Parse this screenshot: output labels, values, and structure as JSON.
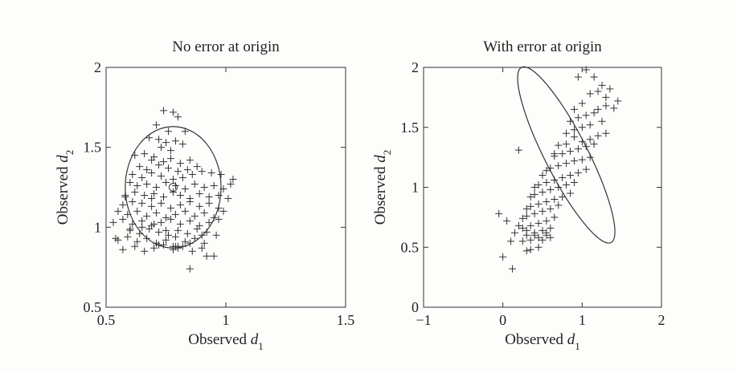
{
  "chart_data": [
    {
      "type": "scatter",
      "title": "No error at origin",
      "xlabel": "Observed d",
      "xlabel_sub": "1",
      "ylabel": "Observed d",
      "ylabel_sub": "2",
      "xlim": [
        0.5,
        1.5
      ],
      "ylim": [
        0.5,
        2
      ],
      "xticks": [
        0.5,
        1,
        1.5
      ],
      "xtick_labels": [
        "0.5",
        "1",
        "1.5"
      ],
      "yticks": [
        0.5,
        1,
        1.5,
        2
      ],
      "ytick_labels": [
        "0.5",
        "1",
        "1.5",
        "2"
      ],
      "grid": false,
      "ellipse": {
        "cx": 0.78,
        "cy": 1.25,
        "rx": 0.2,
        "ry": 0.38,
        "angle_deg": 0
      },
      "center_marker": [
        0.78,
        1.25
      ],
      "x": [
        0.74,
        0.78,
        0.8,
        0.71,
        0.76,
        0.83,
        0.68,
        0.72,
        0.75,
        0.79,
        0.73,
        0.82,
        0.77,
        0.62,
        0.66,
        0.69,
        0.7,
        0.74,
        0.77,
        0.81,
        0.85,
        0.64,
        0.67,
        0.72,
        0.76,
        0.8,
        0.84,
        0.88,
        0.61,
        0.65,
        0.69,
        0.73,
        0.78,
        0.82,
        0.86,
        0.9,
        0.94,
        0.98,
        1.03,
        0.6,
        0.63,
        0.67,
        0.71,
        0.75,
        0.79,
        0.83,
        0.87,
        0.91,
        0.95,
        0.99,
        1.02,
        0.58,
        0.62,
        0.66,
        0.7,
        0.74,
        0.78,
        0.81,
        0.85,
        0.89,
        0.93,
        0.97,
        1.01,
        0.57,
        0.61,
        0.65,
        0.69,
        0.73,
        0.77,
        0.81,
        0.85,
        0.89,
        0.93,
        0.97,
        0.55,
        0.59,
        0.63,
        0.67,
        0.71,
        0.75,
        0.79,
        0.83,
        0.87,
        0.91,
        0.95,
        0.99,
        0.53,
        0.57,
        0.61,
        0.65,
        0.69,
        0.73,
        0.77,
        0.81,
        0.85,
        0.89,
        0.93,
        0.97,
        0.6,
        0.64,
        0.68,
        0.72,
        0.76,
        0.8,
        0.84,
        0.88,
        0.92,
        0.96,
        0.55,
        0.59,
        0.63,
        0.67,
        0.71,
        0.75,
        0.79,
        0.83,
        0.87,
        0.91,
        0.57,
        0.62,
        0.66,
        0.7,
        0.74,
        0.78,
        0.82,
        0.86,
        0.9,
        0.54,
        0.6,
        0.65,
        0.7,
        0.75,
        0.8,
        0.85,
        0.9,
        0.95,
        0.58,
        0.69,
        0.78,
        0.79,
        0.92,
        0.85,
        0.8,
        0.72
      ],
      "y": [
        1.73,
        1.72,
        1.69,
        1.64,
        1.6,
        1.6,
        1.56,
        1.55,
        1.53,
        1.54,
        1.5,
        1.52,
        1.48,
        1.45,
        1.46,
        1.42,
        1.44,
        1.41,
        1.43,
        1.4,
        1.42,
        1.38,
        1.36,
        1.39,
        1.37,
        1.35,
        1.36,
        1.38,
        1.33,
        1.31,
        1.34,
        1.32,
        1.3,
        1.31,
        1.33,
        1.35,
        1.34,
        1.33,
        1.3,
        1.28,
        1.26,
        1.27,
        1.25,
        1.28,
        1.26,
        1.24,
        1.27,
        1.25,
        1.26,
        1.24,
        1.27,
        1.2,
        1.22,
        1.2,
        1.21,
        1.19,
        1.22,
        1.2,
        1.18,
        1.21,
        1.19,
        1.2,
        1.18,
        1.14,
        1.16,
        1.15,
        1.13,
        1.15,
        1.12,
        1.14,
        1.16,
        1.13,
        1.15,
        1.12,
        1.1,
        1.08,
        1.1,
        1.07,
        1.09,
        1.06,
        1.08,
        1.1,
        1.07,
        1.09,
        1.06,
        1.1,
        1.03,
        1.05,
        1.02,
        1.04,
        1.01,
        1.03,
        1.05,
        1.02,
        1.04,
        1.01,
        1.03,
        1.05,
        0.98,
        0.96,
        0.99,
        0.97,
        0.95,
        0.98,
        0.96,
        0.99,
        0.97,
        0.95,
        0.92,
        0.94,
        0.91,
        0.93,
        0.9,
        0.92,
        0.94,
        0.91,
        0.93,
        0.9,
        0.86,
        0.88,
        0.85,
        0.87,
        0.89,
        0.86,
        0.88,
        0.85,
        0.87,
        0.93,
        0.99,
        1.0,
        1.02,
        0.98,
        0.88,
        0.9,
        0.95,
        0.82,
        1.19,
        1.18,
        0.88,
        0.88,
        0.82,
        0.74,
        0.87,
        0.89
      ]
    },
    {
      "type": "scatter",
      "title": "With error at origin",
      "xlabel": "Observed d",
      "xlabel_sub": "1",
      "ylabel": "Observed d",
      "ylabel_sub": "2",
      "xlim": [
        -1,
        2
      ],
      "ylim": [
        0,
        2
      ],
      "xticks": [
        -1,
        0,
        1,
        2
      ],
      "xtick_labels": [
        "−1",
        "0",
        "1",
        "2"
      ],
      "yticks": [
        0,
        0.5,
        1,
        1.5,
        2
      ],
      "ytick_labels": [
        "0",
        "0.5",
        "1",
        "1.5",
        "2"
      ],
      "grid": false,
      "ellipse": {
        "cx": 0.8,
        "cy": 1.27,
        "rx": 0.27,
        "ry": 0.82,
        "angle_deg": 27
      },
      "x": [
        1.05,
        1.15,
        0.95,
        1.25,
        1.35,
        1.45,
        1.3,
        1.2,
        1.1,
        1.0,
        0.9,
        1.4,
        1.3,
        1.2,
        1.15,
        1.05,
        0.95,
        0.85,
        1.25,
        1.1,
        1.0,
        0.9,
        0.8,
        1.3,
        1.2,
        1.1,
        1.0,
        0.9,
        0.8,
        0.7,
        1.15,
        1.05,
        0.95,
        0.85,
        0.75,
        0.65,
        1.1,
        1.0,
        0.9,
        0.8,
        0.7,
        0.6,
        0.55,
        1.05,
        0.95,
        0.85,
        0.75,
        0.65,
        0.55,
        0.45,
        0.9,
        0.8,
        0.7,
        0.6,
        0.5,
        0.4,
        0.35,
        0.85,
        0.75,
        0.65,
        0.55,
        0.45,
        0.35,
        0.3,
        0.7,
        0.6,
        0.5,
        0.4,
        0.3,
        0.25,
        0.65,
        0.55,
        0.45,
        0.35,
        0.25,
        0.6,
        0.5,
        0.4,
        0.3,
        0.55,
        0.45,
        0.35,
        0.25,
        0.5,
        0.4,
        0.3,
        0.2,
        0.45,
        0.35,
        0.55,
        0.6,
        0.15,
        0.1,
        0.3,
        0.0,
        0.12,
        -0.05,
        0.05,
        0.2,
        0.4,
        0.5,
        0.65
      ],
      "y": [
        1.98,
        1.92,
        1.92,
        1.85,
        1.82,
        1.72,
        1.75,
        1.8,
        1.78,
        1.7,
        1.65,
        1.66,
        1.68,
        1.65,
        1.62,
        1.6,
        1.58,
        1.55,
        1.55,
        1.52,
        1.5,
        1.48,
        1.45,
        1.45,
        1.43,
        1.4,
        1.38,
        1.42,
        1.36,
        1.35,
        1.36,
        1.34,
        1.32,
        1.3,
        1.28,
        1.26,
        1.25,
        1.23,
        1.22,
        1.2,
        1.18,
        1.16,
        1.14,
        1.15,
        1.12,
        1.1,
        1.08,
        1.06,
        1.04,
        1.02,
        1.04,
        1.02,
        1.0,
        0.98,
        0.96,
        0.94,
        0.92,
        0.95,
        0.92,
        0.9,
        0.88,
        0.86,
        0.84,
        0.82,
        0.85,
        0.82,
        0.8,
        0.78,
        0.76,
        0.74,
        0.75,
        0.72,
        0.7,
        0.68,
        0.66,
        0.66,
        0.64,
        0.62,
        0.6,
        0.6,
        0.58,
        0.56,
        0.55,
        0.56,
        0.6,
        0.64,
        0.68,
        0.5,
        0.48,
        0.62,
        0.58,
        0.62,
        0.55,
        0.47,
        0.42,
        0.32,
        0.78,
        0.72,
        1.31,
        1.0,
        1.1,
        1.28
      ]
    }
  ]
}
